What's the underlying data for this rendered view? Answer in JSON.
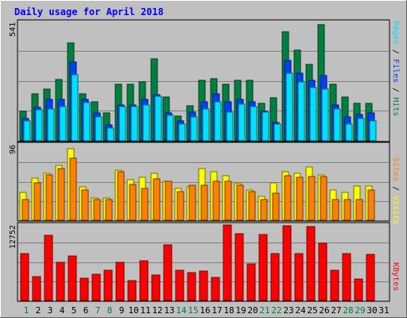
{
  "colors": {
    "background": "#c0c0c0",
    "title": "#0000ff",
    "hits": "#008040",
    "files": "#0040ff",
    "pages": "#00e0ff",
    "visits": "#ffff00",
    "sites": "#ff8000",
    "kbytes": "#ff0000",
    "weekday": "#000000",
    "weekend": "#008040"
  },
  "chart_data": [
    {
      "type": "bar",
      "title": "Daily usage for April 2018",
      "ytick": "541",
      "ylim": [
        0,
        541
      ],
      "categories": [
        "1",
        "2",
        "3",
        "4",
        "5",
        "6",
        "7",
        "8",
        "9",
        "10",
        "11",
        "12",
        "13",
        "14",
        "15",
        "16",
        "17",
        "18",
        "19",
        "20",
        "21",
        "22",
        "23",
        "24",
        "25",
        "26",
        "27",
        "28",
        "29",
        "30",
        "31"
      ],
      "weekend_days": [
        "1",
        "7",
        "8",
        "14",
        "15",
        "21",
        "22",
        "28",
        "29"
      ],
      "legend": [
        "Pages",
        "Files",
        "Hits"
      ],
      "series": [
        {
          "name": "Hits",
          "values": [
            133,
            212,
            234,
            277,
            442,
            212,
            176,
            124,
            256,
            256,
            266,
            368,
            198,
            112,
            158,
            274,
            279,
            256,
            274,
            274,
            169,
            194,
            490,
            410,
            344,
            524,
            256,
            198,
            169,
            168,
            0
          ]
        },
        {
          "name": "Files",
          "values": [
            101,
            150,
            186,
            186,
            354,
            186,
            124,
            72,
            160,
            160,
            186,
            208,
            124,
            88,
            128,
            176,
            210,
            176,
            188,
            176,
            132,
            82,
            362,
            306,
            274,
            292,
            160,
            106,
            117,
            124,
            0
          ]
        },
        {
          "name": "Pages",
          "values": [
            88,
            140,
            144,
            154,
            296,
            172,
            106,
            56,
            154,
            154,
            160,
            200,
            114,
            77,
            106,
            142,
            176,
            128,
            166,
            154,
            130,
            77,
            304,
            264,
            240,
            234,
            142,
            77,
            100,
            88,
            0
          ]
        }
      ]
    },
    {
      "type": "bar",
      "ytick": "96",
      "ylim": [
        0,
        96
      ],
      "legend": [
        "Sites",
        "Visits"
      ],
      "series": [
        {
          "name": "Visits",
          "values": [
            35,
            52,
            58,
            68,
            89,
            42,
            28,
            28,
            62,
            50,
            53,
            58,
            48,
            40,
            42,
            64,
            60,
            55,
            46,
            38,
            30,
            47,
            60,
            58,
            66,
            56,
            38,
            35,
            43,
            43,
            0
          ]
        },
        {
          "name": "Sites",
          "values": [
            26,
            47,
            56,
            64,
            77,
            38,
            26,
            26,
            60,
            45,
            40,
            51,
            48,
            36,
            44,
            44,
            48,
            48,
            44,
            36,
            26,
            34,
            55,
            53,
            54,
            54,
            26,
            26,
            26,
            38,
            0
          ]
        }
      ]
    },
    {
      "type": "bar",
      "ytick": "12752",
      "ylim": [
        0,
        12752
      ],
      "legend": [
        "KBytes"
      ],
      "series": [
        {
          "name": "KBytes",
          "values": [
            7800,
            4000,
            10800,
            6300,
            7400,
            3700,
            4300,
            5000,
            6300,
            3300,
            6600,
            4200,
            9200,
            5000,
            4600,
            4800,
            3800,
            12500,
            11000,
            6100,
            10900,
            7800,
            12400,
            7800,
            12200,
            9500,
            5000,
            7800,
            3600,
            7600,
            0
          ]
        }
      ]
    }
  ]
}
